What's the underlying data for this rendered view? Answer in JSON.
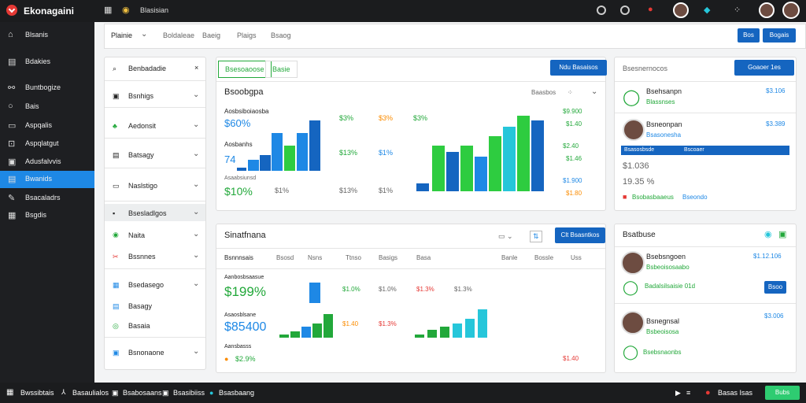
{
  "top": {
    "brand": "Ekonagaini",
    "tab": "Blasisian"
  },
  "sidebar": {
    "title": "Blsanis",
    "items": [
      "Bdakies",
      "Buntbogize",
      "Bais",
      "Aspqalis",
      "Aspqlatgut",
      "Adusfalvvis",
      "Bwanids",
      "Bsacaladrs",
      "Bsgdis"
    ]
  },
  "filter": {
    "dropdown": "Plainie",
    "tabs": [
      "Boldaleae",
      "Baeig",
      "Plaigs",
      "Bsaog"
    ],
    "btn1": "Bos",
    "btn2": "Bogais"
  },
  "nav": {
    "items": [
      "Benbadadie",
      "Bsnhigs",
      "Aedonsit",
      "Batsagy",
      "Naslstigo",
      "Bsesladlgos",
      "Naita",
      "Bssnnes",
      "Bsedasego",
      "Basagy",
      "Basaia",
      "Bsnonaone"
    ]
  },
  "top_panel": {
    "tab1": "Bsesoaoose",
    "tab2": "Basie",
    "action": "Ndu Basaisos",
    "title": "Bsoobgpa",
    "sub": "Baasbos",
    "label1": "Aosbsiboiaosba",
    "val1": "$60%",
    "label2": "Aosbanhs",
    "val2": "74",
    "label3": "Asaabsiunsd",
    "val3": "$10%",
    "pcts": [
      "$3%",
      "$3%",
      "$3%",
      "$13%",
      "$1%",
      "$1%",
      "$13%",
      "$1%"
    ],
    "right_vals": [
      "$9.900",
      "$1.40",
      "$2.40",
      "$1.46",
      "$1.900",
      "$1.80"
    ]
  },
  "bottom_panel": {
    "title": "Sinatfnana",
    "action": "Clt Bsasntkos",
    "cols": [
      "Bsnnnsais",
      "Bsosd",
      "Nsns",
      "Ttnso",
      "Basigs",
      "Basa",
      "Banle",
      "Bossle",
      "Uss"
    ],
    "row1_label": "Aanbosbsaasue",
    "row1_val": "$199%",
    "row2_label": "Asaosblsane",
    "row2_val": "$85400",
    "row3_label": "Aansbasss",
    "row3_val": "$2.9%",
    "vals": [
      "$1.0%",
      "$1.0%",
      "$1.3%",
      "$1.3%",
      "$1.40",
      "$1.3%",
      "$1.40"
    ]
  },
  "right_top": {
    "title": "Bsesnernocos",
    "action": "Goaoer 1es",
    "rows": [
      {
        "name": "Bsehsanpn",
        "sub": "Blassnses",
        "val": "$3.106"
      },
      {
        "name": "Bsneonpan",
        "sub": "Bsasonesha",
        "val": "$3.389"
      }
    ],
    "bar_l": "Bsasosbsde",
    "bar_r": "Bscoaer",
    "v1": "$1.036",
    "v2": "19.35 %",
    "tag": "Bsobasbaaeus",
    "link": "Bseondo"
  },
  "right_bottom": {
    "title": "Bsatbuse",
    "rows": [
      {
        "name": "Bsebsngoen",
        "sub": "Bsbeoisosaabo",
        "val": "$1.12.106"
      },
      {
        "name": "Bsnegnsal",
        "sub": "Bsbeoisosa",
        "val": "$3.006"
      }
    ],
    "btn": "Bsoo",
    "status1": "Badalsilsaisie 01d",
    "status2": "Bsebsnaonbs"
  },
  "bottom": {
    "items": [
      "Bwssibtais",
      "Basaulialos",
      "Bsabosaans",
      "Bsasibiiss",
      "Bsasbaang"
    ],
    "right": "Basas Isas",
    "btn": "Bubs"
  },
  "colors": {
    "green": "#22a83a",
    "blue": "#1e88e5",
    "red": "#e53935",
    "teal": "#26c6da"
  }
}
